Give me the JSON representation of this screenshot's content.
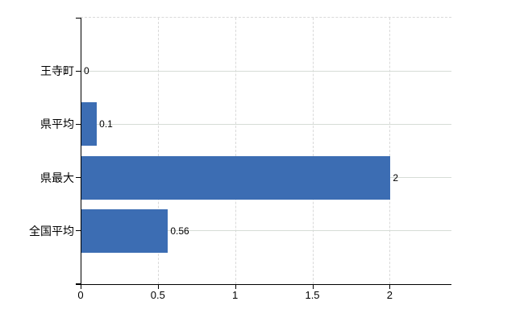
{
  "chart_data": {
    "type": "bar",
    "orientation": "horizontal",
    "title": "",
    "categories": [
      "王寺町",
      "県平均",
      "県最大",
      "全国平均"
    ],
    "values": [
      0,
      0.1,
      2,
      0.56
    ],
    "value_labels": [
      "0",
      "0.1",
      "2",
      "0.56"
    ],
    "x_tick_values": [
      0,
      0.5,
      1,
      1.5,
      2
    ],
    "x_tick_labels": [
      "0",
      "0.5",
      "1",
      "1.5",
      "2"
    ],
    "x_range": [
      0,
      2.4
    ],
    "grid": {
      "vertical_dashed_at": [
        0.5,
        1,
        1.5,
        2
      ],
      "horizontal_solid_at_category_centers": true,
      "top_border_dashed": true
    },
    "legend": "none",
    "colors": {
      "bar": "#3c6db3",
      "axis": "#000000",
      "grid_dashed": "#d9d9d9",
      "grid_solid": "#d6dcd6",
      "text": "#000000",
      "background": "#ffffff"
    }
  }
}
